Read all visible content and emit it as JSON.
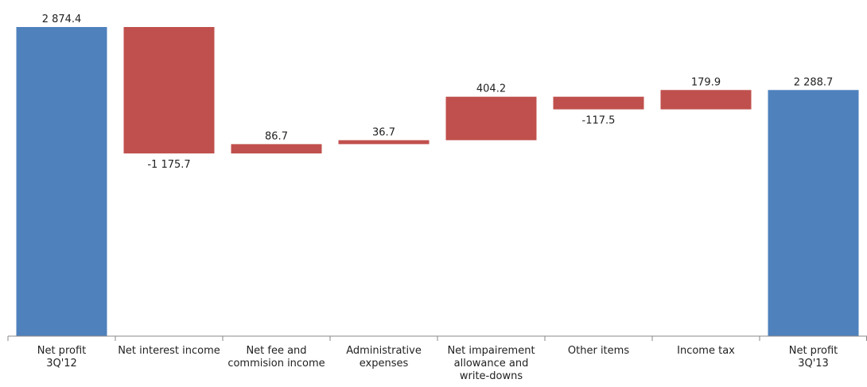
{
  "chart_data": {
    "type": "bar",
    "subtype": "waterfall",
    "categories": [
      [
        "Net profit",
        "3Q'12"
      ],
      [
        "Net interest income"
      ],
      [
        "Net fee and",
        "commision income"
      ],
      [
        "Administrative",
        "expenses"
      ],
      [
        "Net impairement",
        "allowance and",
        "write-downs"
      ],
      [
        "Other items"
      ],
      [
        "Income tax"
      ],
      [
        "Net profit",
        "3Q'13"
      ]
    ],
    "values": [
      2874.4,
      -1175.7,
      86.7,
      36.7,
      404.2,
      -117.5,
      179.9,
      2288.7
    ],
    "value_labels": [
      "2 874.4",
      "-1 175.7",
      "86.7",
      "36.7",
      "404.2",
      "-117.5",
      "179.9",
      "2 288.7"
    ],
    "bar_kinds": [
      "total",
      "change",
      "change",
      "change",
      "change",
      "change",
      "change",
      "total"
    ],
    "colors": {
      "total": "#4f81bd",
      "change": "#c0504d",
      "axis": "#888888"
    },
    "ylim": [
      0,
      2874.4
    ],
    "grid": false,
    "legend": "none"
  }
}
